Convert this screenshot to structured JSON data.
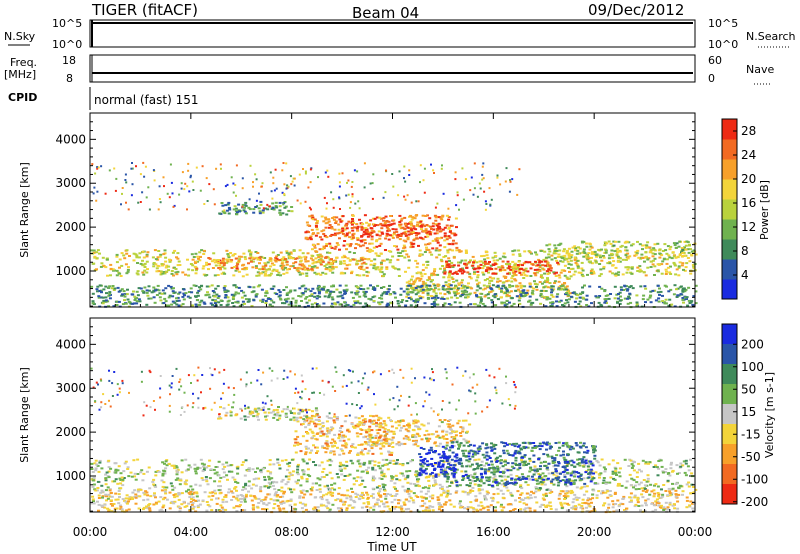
{
  "header": {
    "station": "TIGER (fitACF)",
    "beam": "Beam 04",
    "date": "09/Dec/2012"
  },
  "top_panels": {
    "nsky_label": "N.Sky",
    "nsky_ticks": [
      "10^5",
      "10^0"
    ],
    "nsearch_label": "N.Search",
    "nsearch_ticks": [
      "10^5",
      "10^0"
    ],
    "freq_label": "Freq.",
    "freq_unit": "[MHz]",
    "freq_ticks": [
      "18",
      "8"
    ],
    "nave_label": "Nave",
    "nave_ticks": [
      "60",
      "0"
    ],
    "cpid_label": "CPID",
    "cpid_text": "normal (fast) 151"
  },
  "colors": {
    "power": [
      "#1a2be0",
      "#2a55a8",
      "#3f8a5a",
      "#6fb24f",
      "#b9d23c",
      "#f3d43a",
      "#f7a02a",
      "#f26a22",
      "#ee2a14"
    ],
    "velocity": [
      "#1a2be0",
      "#2a55a8",
      "#3f8a5a",
      "#6fb24f",
      "#c6c6c6",
      "#f3d43a",
      "#f7a02a",
      "#f26a22",
      "#ee2a14"
    ]
  },
  "chart_data": [
    {
      "type": "heatmap",
      "panel": "power",
      "ylabel": "Slant Range [km]",
      "xlabel": "Time UT",
      "x_ticks": [
        "00:00",
        "04:00",
        "08:00",
        "12:00",
        "16:00",
        "20:00",
        "00:00"
      ],
      "x_range_hours": [
        0,
        24
      ],
      "y_ticks": [
        1000,
        2000,
        3000,
        4000
      ],
      "y_range_km": [
        180,
        4600
      ],
      "colorbar_label": "Power [dB]",
      "colorbar_ticks": [
        "28",
        "24",
        "20",
        "16",
        "12",
        "8",
        "4"
      ],
      "colorbar_range": [
        0,
        30
      ],
      "bands": [
        {
          "t0": 0,
          "t1": 24,
          "r0": 900,
          "r1": 1500,
          "level": 0.55
        },
        {
          "t0": 4,
          "t1": 11,
          "r0": 1050,
          "r1": 1350,
          "level": 0.72
        },
        {
          "t0": 8.5,
          "t1": 14.5,
          "r0": 1500,
          "r1": 2300,
          "level": 0.78
        },
        {
          "t0": 10,
          "t1": 14,
          "r0": 1800,
          "r1": 2100,
          "level": 0.92
        },
        {
          "t0": 14,
          "t1": 18.5,
          "r0": 950,
          "r1": 1250,
          "level": 0.93
        },
        {
          "t0": 12.5,
          "t1": 19,
          "r0": 400,
          "r1": 900,
          "level": 0.6
        },
        {
          "t0": 18,
          "t1": 24,
          "r0": 1300,
          "r1": 1700,
          "level": 0.5
        },
        {
          "t0": 5,
          "t1": 8,
          "r0": 2300,
          "r1": 2600,
          "level": 0.3
        },
        {
          "t0": 0,
          "t1": 24,
          "r0": 200,
          "r1": 700,
          "level": 0.3
        }
      ]
    },
    {
      "type": "heatmap",
      "panel": "velocity",
      "ylabel": "Slant Range [km]",
      "xlabel": "Time UT",
      "x_ticks": [
        "00:00",
        "04:00",
        "08:00",
        "12:00",
        "16:00",
        "20:00",
        "00:00"
      ],
      "x_range_hours": [
        0,
        24
      ],
      "y_ticks": [
        1000,
        2000,
        3000,
        4000
      ],
      "y_range_km": [
        180,
        4600
      ],
      "colorbar_label": "Velocity [m s-1]",
      "colorbar_ticks": [
        "200",
        "100",
        "50",
        "15",
        "-15",
        "-50",
        "-100",
        "-200"
      ],
      "colorbar_range": [
        -250,
        250
      ],
      "bands": [
        {
          "t0": 0,
          "t1": 24,
          "r0": 700,
          "r1": 1400,
          "level": 0.48
        },
        {
          "t0": 11,
          "t1": 15,
          "r0": 1700,
          "r1": 2300,
          "level": 0.6
        },
        {
          "t0": 14,
          "t1": 20,
          "r0": 800,
          "r1": 1800,
          "level": 0.22
        },
        {
          "t0": 13,
          "t1": 14.5,
          "r0": 1000,
          "r1": 1700,
          "level": 0.05
        },
        {
          "t0": 8,
          "t1": 12,
          "r0": 1500,
          "r1": 2400,
          "level": 0.65
        },
        {
          "t0": 0,
          "t1": 24,
          "r0": 200,
          "r1": 700,
          "level": 0.6
        },
        {
          "t0": 5,
          "t1": 9,
          "r0": 2300,
          "r1": 2600,
          "level": 0.5
        }
      ]
    }
  ]
}
